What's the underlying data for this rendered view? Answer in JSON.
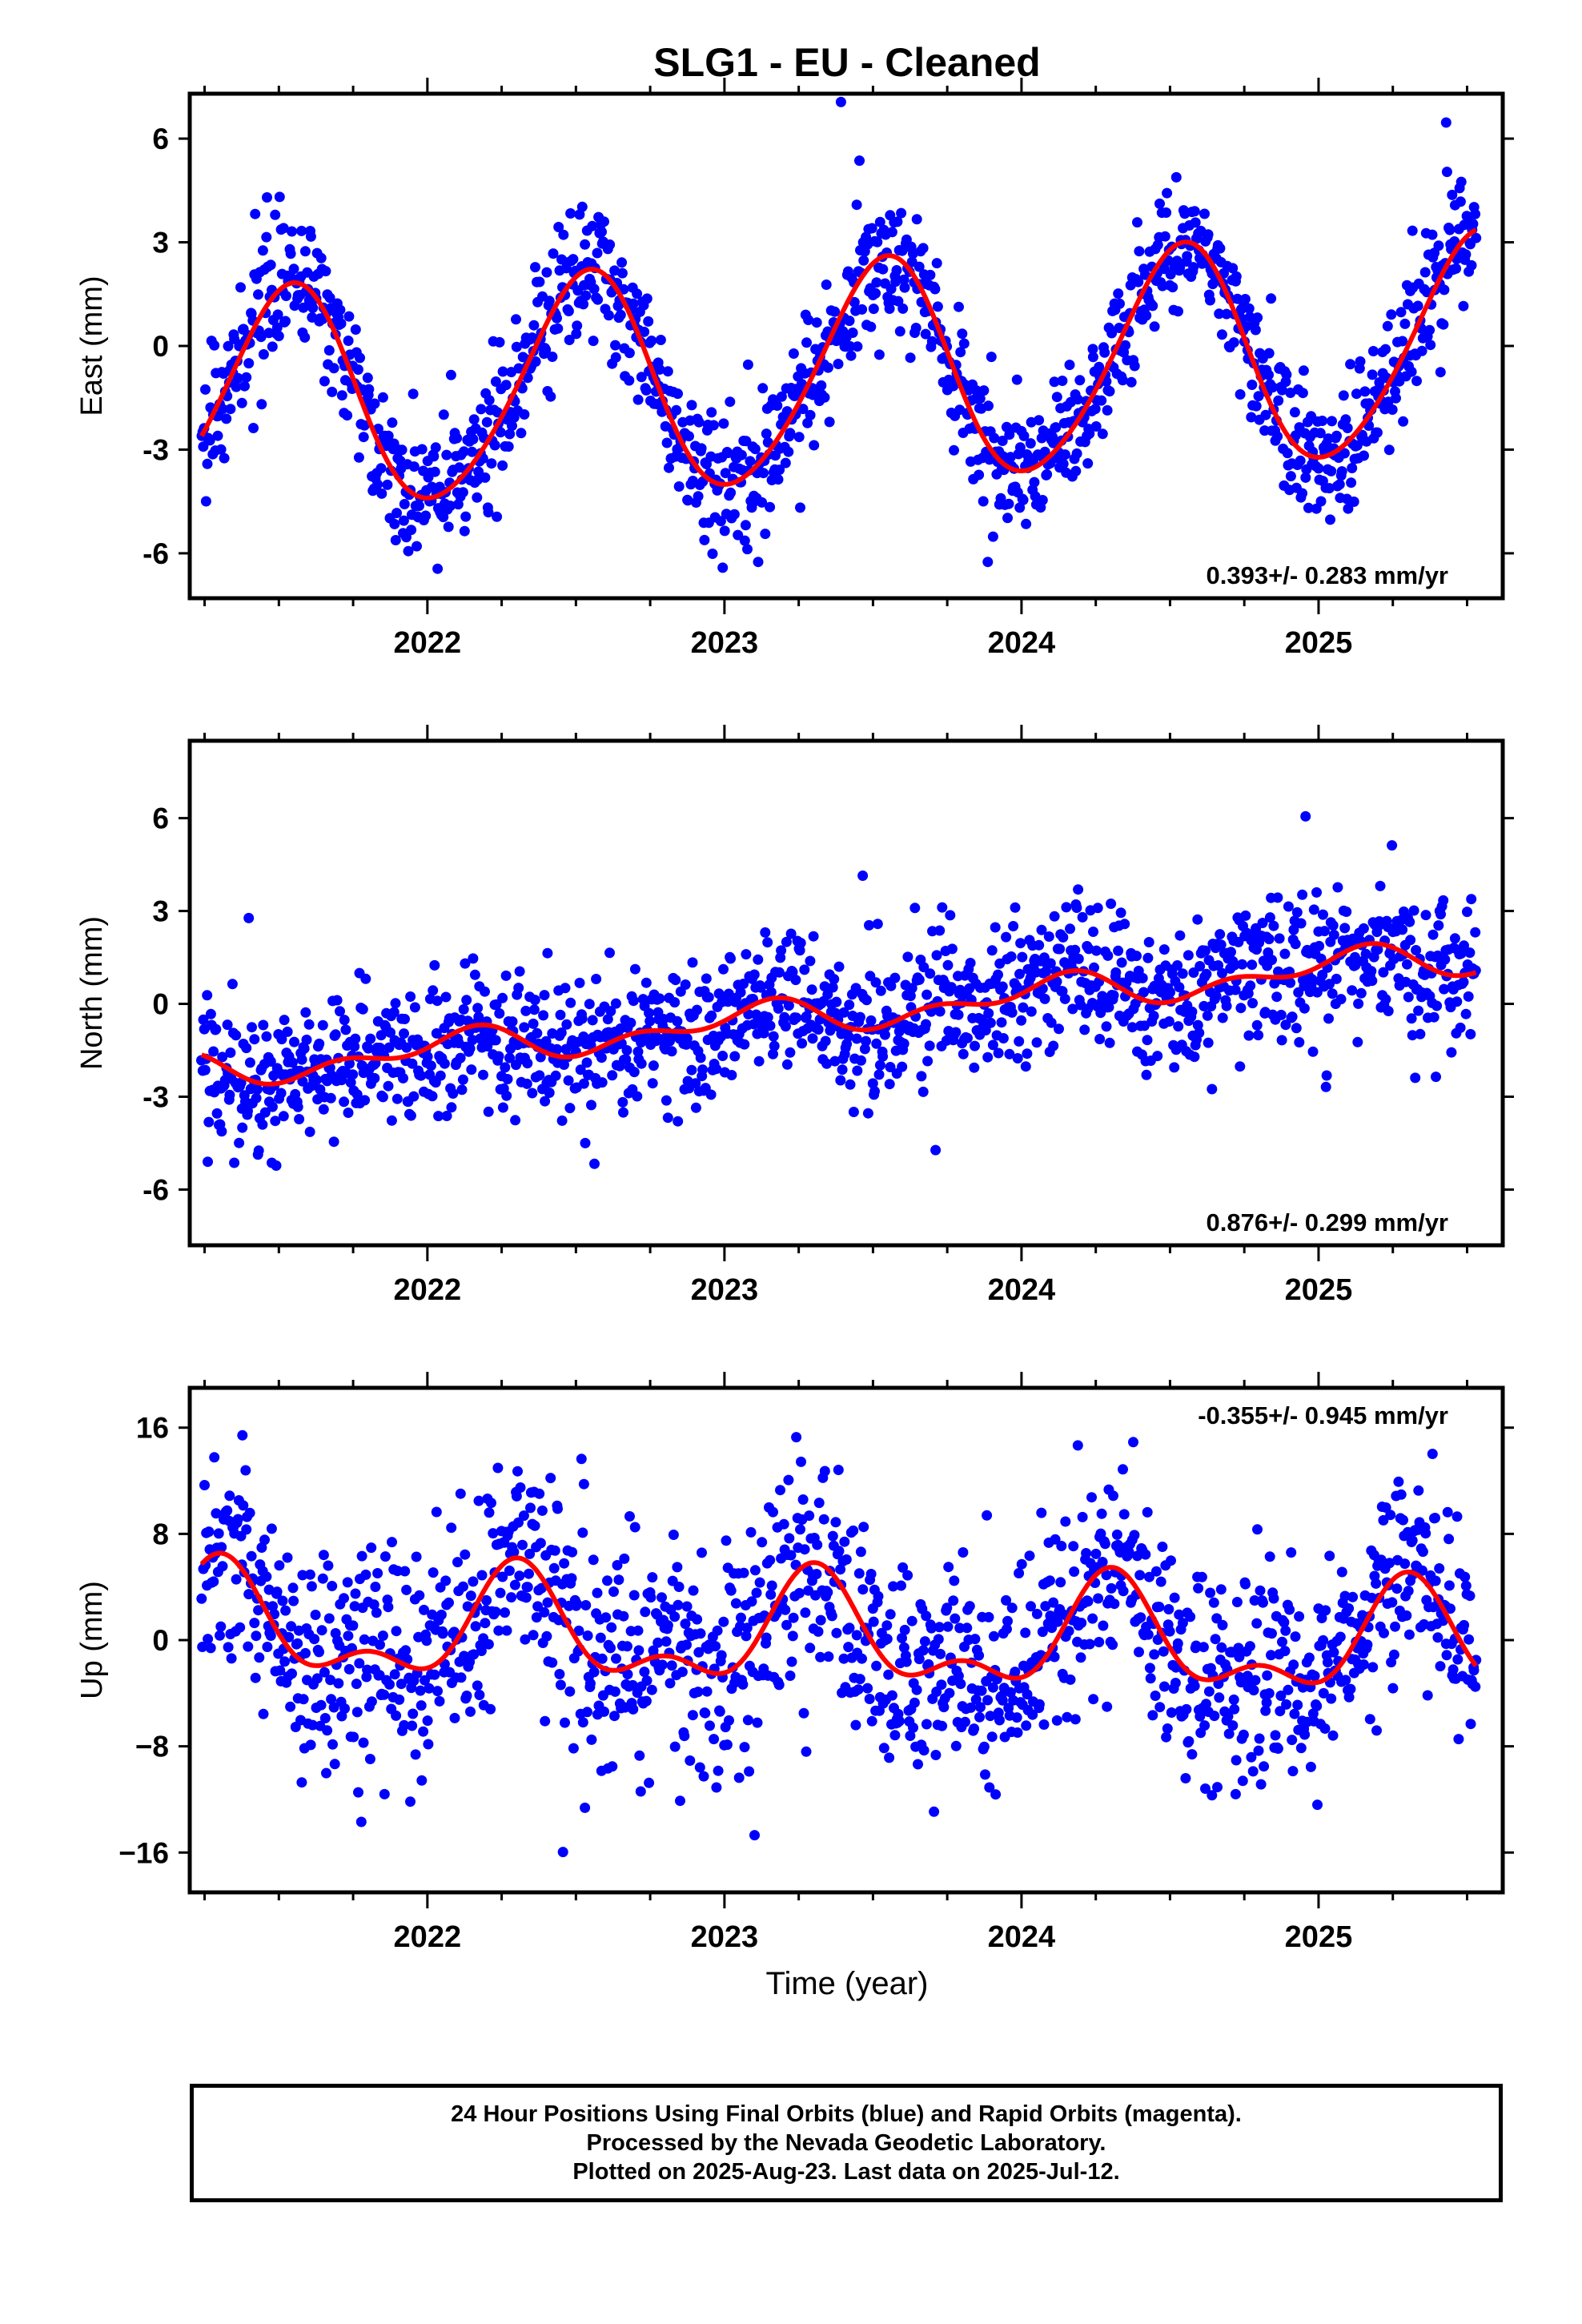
{
  "title": "SLG1  - EU - Cleaned",
  "colors": {
    "points": "#0000ff",
    "fit": "#ff0000",
    "frame": "#000000"
  },
  "xaxis": {
    "label": "Time (year)",
    "ticks": [
      "2022",
      "2023",
      "2024",
      "2025"
    ]
  },
  "footer": {
    "line1": "24 Hour Positions Using Final Orbits (blue) and Rapid Orbits (magenta).",
    "line2": "Processed by the Nevada Geodetic Laboratory.",
    "line3": "Plotted on 2025-Aug-23. Last data on 2025-Jul-12."
  },
  "chart_data": [
    {
      "type": "scatter",
      "component": "east",
      "ylabel": "East (mm)",
      "ylim": [
        -7.3,
        7.3
      ],
      "yticks": [
        -6,
        -3,
        0,
        3,
        6
      ],
      "ytick_labels": [
        "-6",
        "-3",
        "0",
        "3",
        "6"
      ],
      "xlim": [
        2021.2,
        2025.62
      ],
      "velocity_label": "0.393+/- 0.283 mm/yr",
      "velocity_position": "bottom-right",
      "fit_model": {
        "offset": -0.85,
        "rate": 0.393,
        "ref_year": 2023.4,
        "annual_cos": -3.1,
        "annual_sin": -0.65,
        "semiannual_cos": 0.1,
        "semiannual_sin": 0.3
      },
      "scatter_sigma": 0.95,
      "n_points": 1400,
      "series": [
        {
          "values": "daily positions (blue dots)"
        },
        {
          "values": "model fit (red curve)"
        }
      ]
    },
    {
      "type": "scatter",
      "component": "north",
      "ylabel": "North (mm)",
      "ylim": [
        -7.8,
        8.5
      ],
      "yticks": [
        -6,
        -3,
        0,
        3,
        6
      ],
      "ytick_labels": [
        "-6",
        "-3",
        "0",
        "3",
        "6"
      ],
      "xlim": [
        2021.2,
        2025.62
      ],
      "velocity_label": "0.876+/- 0.299 mm/yr",
      "velocity_position": "bottom-right",
      "fit_model": {
        "offset": -0.3,
        "rate": 0.876,
        "ref_year": 2023.4,
        "annual_cos": 0.35,
        "annual_sin": 0.25,
        "semiannual_cos": -0.25,
        "semiannual_sin": 0.2
      },
      "scatter_sigma": 1.15,
      "n_points": 1400,
      "series": [
        {
          "values": "daily positions (blue dots)"
        },
        {
          "values": "model fit (red curve)"
        }
      ]
    },
    {
      "type": "scatter",
      "component": "up",
      "ylabel": "Up (mm)",
      "ylim": [
        -19,
        19
      ],
      "yticks": [
        -16,
        -8,
        0,
        8,
        16
      ],
      "ytick_labels": [
        "−16",
        "−8",
        "0",
        "8",
        "16"
      ],
      "xlim": [
        2021.2,
        2025.62
      ],
      "velocity_label": "-0.355+/- 0.945 mm/yr",
      "velocity_position": "top-right",
      "fit_model": {
        "offset": 0.2,
        "rate": -0.355,
        "ref_year": 2023.4,
        "annual_cos": -1.2,
        "annual_sin": 3.4,
        "semiannual_cos": -1.6,
        "semiannual_sin": -1.2
      },
      "scatter_sigma": 4.2,
      "n_points": 1400,
      "series": [
        {
          "values": "daily positions (blue dots)"
        },
        {
          "values": "model fit (red curve)"
        }
      ]
    }
  ]
}
